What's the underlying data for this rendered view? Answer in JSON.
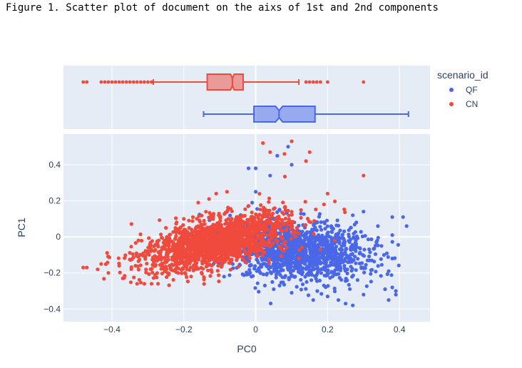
{
  "caption": "Figure 1. Scatter plot of document on the aixs of 1st and 2nd components",
  "chart_data": {
    "type": "scatter",
    "xlabel": "PC0",
    "ylabel": "PC1",
    "xlim": [
      -0.535,
      0.485
    ],
    "ylim": [
      -0.47,
      0.57
    ],
    "x_ticks": [
      -0.4,
      -0.2,
      0,
      0.2,
      0.4
    ],
    "y_ticks": [
      -0.4,
      -0.2,
      0,
      0.2,
      0.4
    ],
    "grid": true,
    "legend": {
      "title": "scenario_id",
      "position": "top-right",
      "entries": [
        {
          "label": "QF",
          "color": "#4a67e8"
        },
        {
          "label": "CN",
          "color": "#f04a3c"
        }
      ]
    },
    "series": [
      {
        "name": "QF",
        "color": "#4a67e8",
        "cluster": {
          "center": [
            0.12,
            -0.08
          ],
          "spread": [
            0.095,
            0.08
          ],
          "count": 1400
        },
        "box": {
          "min": -0.145,
          "q1": -0.005,
          "median": 0.065,
          "q3": 0.165,
          "max": 0.425,
          "notch": [
            0.055,
            0.075
          ]
        },
        "points": [
          [
            0.42,
            0.06
          ],
          [
            0.41,
            0.11
          ],
          [
            0.38,
            0.11
          ],
          [
            0.38,
            0.01
          ],
          [
            0.38,
            -0.12
          ],
          [
            0.37,
            -0.19
          ],
          [
            0.38,
            -0.28
          ],
          [
            0.39,
            -0.32
          ],
          [
            0.37,
            -0.35
          ],
          [
            0.39,
            -0.3
          ],
          [
            0.35,
            -0.05
          ],
          [
            0.34,
            0.06
          ],
          [
            0.3,
            0.14
          ],
          [
            0.28,
            0.08
          ],
          [
            0.27,
            0.12
          ],
          [
            0.3,
            -0.32
          ],
          [
            0.27,
            -0.38
          ],
          [
            0.25,
            -0.37
          ],
          [
            0.23,
            -0.35
          ],
          [
            0.2,
            -0.33
          ],
          [
            0.16,
            -0.35
          ],
          [
            0.1,
            -0.31
          ],
          [
            0.05,
            -0.29
          ],
          [
            0.0,
            0.38
          ],
          [
            0.0,
            0.25
          ],
          [
            -0.01,
            0.19
          ],
          [
            0.06,
            0.45
          ],
          [
            0.09,
            0.5
          ],
          [
            0.04,
            0.34
          ],
          [
            0.1,
            0.4
          ],
          [
            -0.02,
            0.38
          ],
          [
            0.36,
            -0.29
          ]
        ]
      },
      {
        "name": "CN",
        "color": "#f04a3c",
        "cluster": {
          "center": [
            -0.11,
            -0.03
          ],
          "spread": [
            0.1,
            0.065
          ],
          "count": 1800
        },
        "box": {
          "min": -0.285,
          "q1": -0.135,
          "median": -0.065,
          "q3": -0.035,
          "max": 0.12,
          "notch": [
            -0.07,
            -0.06
          ]
        },
        "points": [
          [
            -0.48,
            -0.17
          ],
          [
            -0.47,
            -0.17
          ],
          [
            -0.44,
            -0.18
          ],
          [
            -0.41,
            -0.2
          ],
          [
            -0.43,
            -0.15
          ],
          [
            -0.41,
            -0.11
          ],
          [
            -0.38,
            -0.16
          ],
          [
            -0.37,
            -0.23
          ],
          [
            -0.33,
            -0.26
          ],
          [
            -0.31,
            -0.26
          ],
          [
            -0.29,
            -0.26
          ],
          [
            -0.28,
            -0.21
          ],
          [
            -0.3,
            -0.08
          ],
          [
            -0.27,
            -0.02
          ],
          [
            -0.25,
            0.05
          ],
          [
            -0.2,
            0.1
          ],
          [
            -0.16,
            0.19
          ],
          [
            -0.13,
            0.21
          ],
          [
            -0.11,
            0.24
          ],
          [
            -0.08,
            0.25
          ],
          [
            0.3,
            0.34
          ],
          [
            0.2,
            0.24
          ],
          [
            0.19,
            0.18
          ],
          [
            0.15,
            0.47
          ],
          [
            0.1,
            0.53
          ],
          [
            0.14,
            0.42
          ],
          [
            0.04,
            0.47
          ],
          [
            0.02,
            0.52
          ],
          [
            0.08,
            0.46
          ],
          [
            0.22,
            -0.02
          ],
          [
            0.18,
            -0.07
          ],
          [
            0.12,
            -0.12
          ]
        ]
      }
    ]
  }
}
